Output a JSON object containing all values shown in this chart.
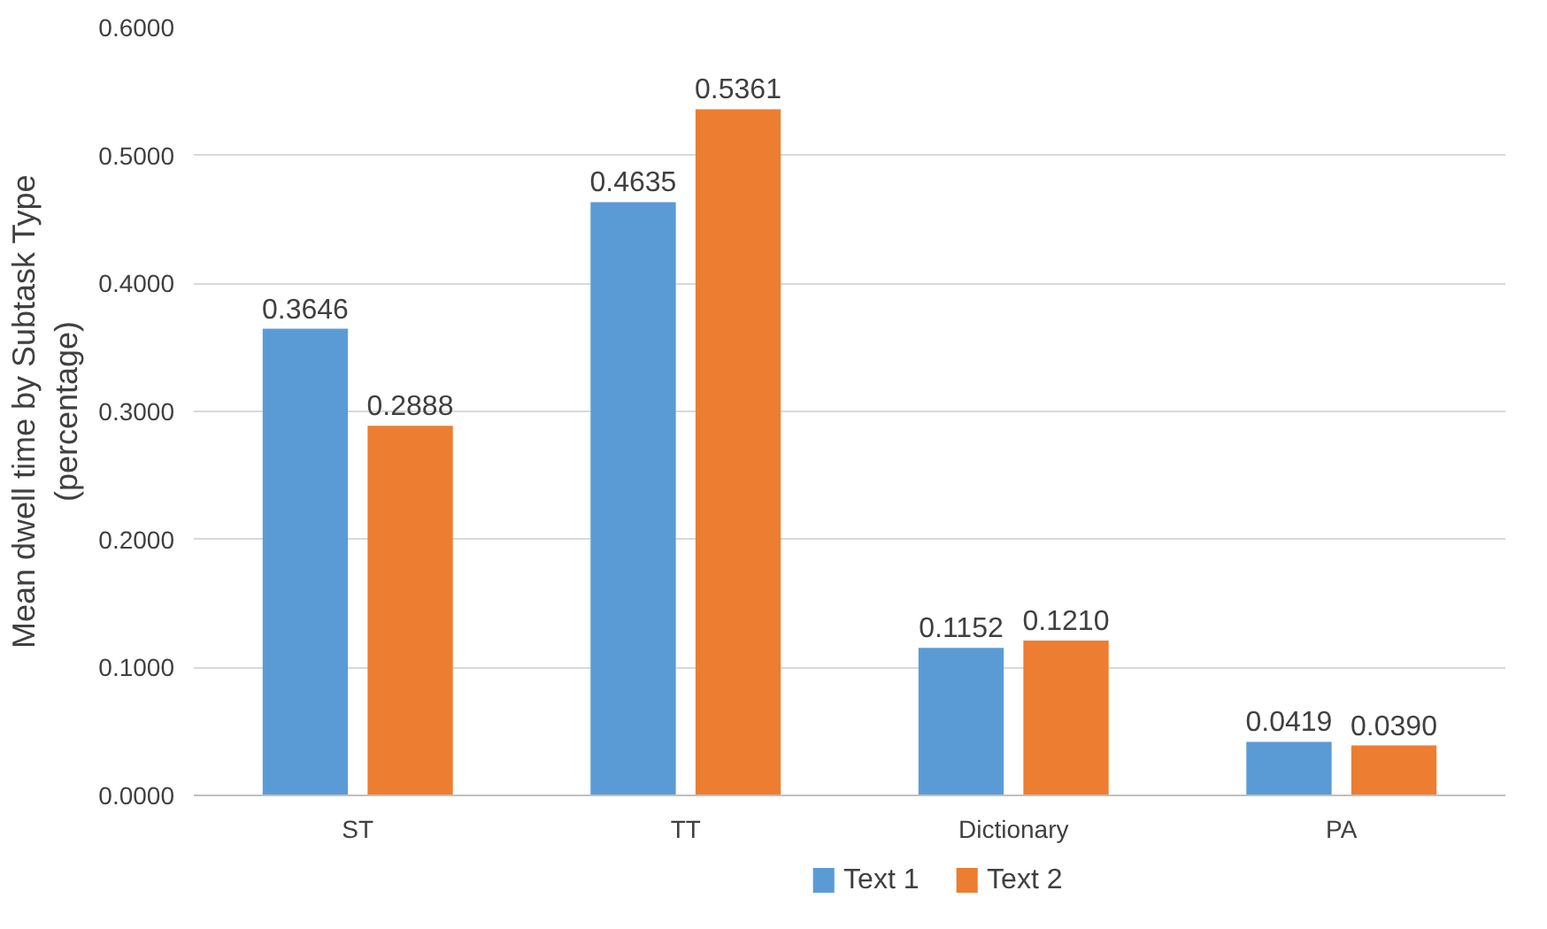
{
  "chart_data": {
    "type": "bar",
    "ylabel": "Mean dwell time by Subtask Type (percentage)",
    "categories": [
      "ST",
      "TT",
      "Dictionary",
      "PA"
    ],
    "series": [
      {
        "name": "Text 1",
        "color": "#5b9bd5",
        "values": [
          0.3646,
          0.4635,
          0.1152,
          0.0419
        ],
        "value_labels": [
          "0.3646",
          "0.4635",
          "0.1152",
          "0.0419"
        ]
      },
      {
        "name": "Text 2",
        "color": "#ed7d31",
        "values": [
          0.2888,
          0.5361,
          0.121,
          0.039
        ],
        "value_labels": [
          "0.2888",
          "0.5361",
          "0.1210",
          "0.0390"
        ]
      }
    ],
    "ylim": [
      0,
      0.6
    ],
    "yticks": [
      {
        "value": 0,
        "label": "0.0000"
      },
      {
        "value": 0.1,
        "label": "0.1000"
      },
      {
        "value": 0.2,
        "label": "0.2000"
      },
      {
        "value": 0.3,
        "label": "0.3000"
      },
      {
        "value": 0.4,
        "label": "0.4000"
      },
      {
        "value": 0.5,
        "label": "0.5000"
      },
      {
        "value": 0.6,
        "label": "0.6000"
      }
    ],
    "grid": "y",
    "legend": "bottom"
  }
}
